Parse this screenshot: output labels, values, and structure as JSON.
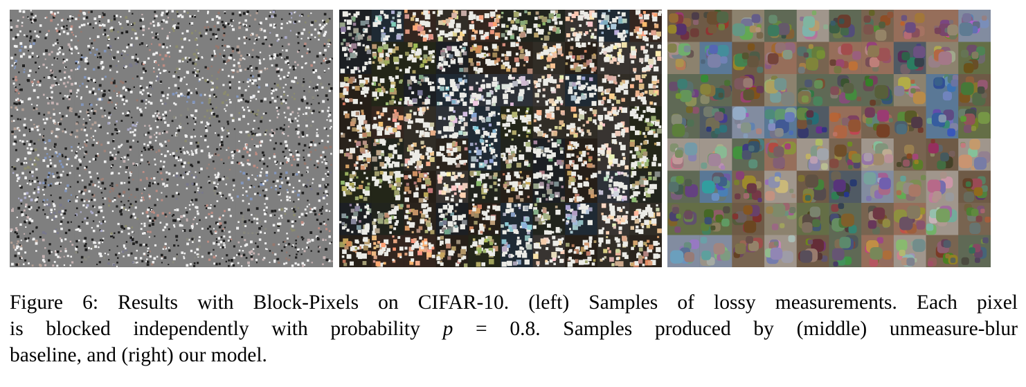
{
  "figure": {
    "panels": [
      {
        "id": "left",
        "description_role": "lossy-measurements",
        "grid": {
          "rows": 8,
          "cols": 10
        }
      },
      {
        "id": "middle",
        "description_role": "unmeasure-blur-baseline",
        "grid": {
          "rows": 8,
          "cols": 10
        }
      },
      {
        "id": "right",
        "description_role": "our-model",
        "grid": {
          "rows": 8,
          "cols": 10
        }
      }
    ],
    "caption": {
      "line1": "Figure 6: Results with Block-Pixels on CIFAR-10. (left) Samples of lossy measurements. Each pixel",
      "line2_pre": "is blocked independently with probability ",
      "line2_var": "p",
      "line2_math": " = 0.8",
      "line2_post": ". Samples produced by (middle) unmeasure-blur",
      "line3": "baseline, and (right) our model."
    },
    "colors": {
      "left_base": "#7f7f7f",
      "middle_base": "#1a1a1a",
      "right_base": "#6a6a60"
    }
  }
}
